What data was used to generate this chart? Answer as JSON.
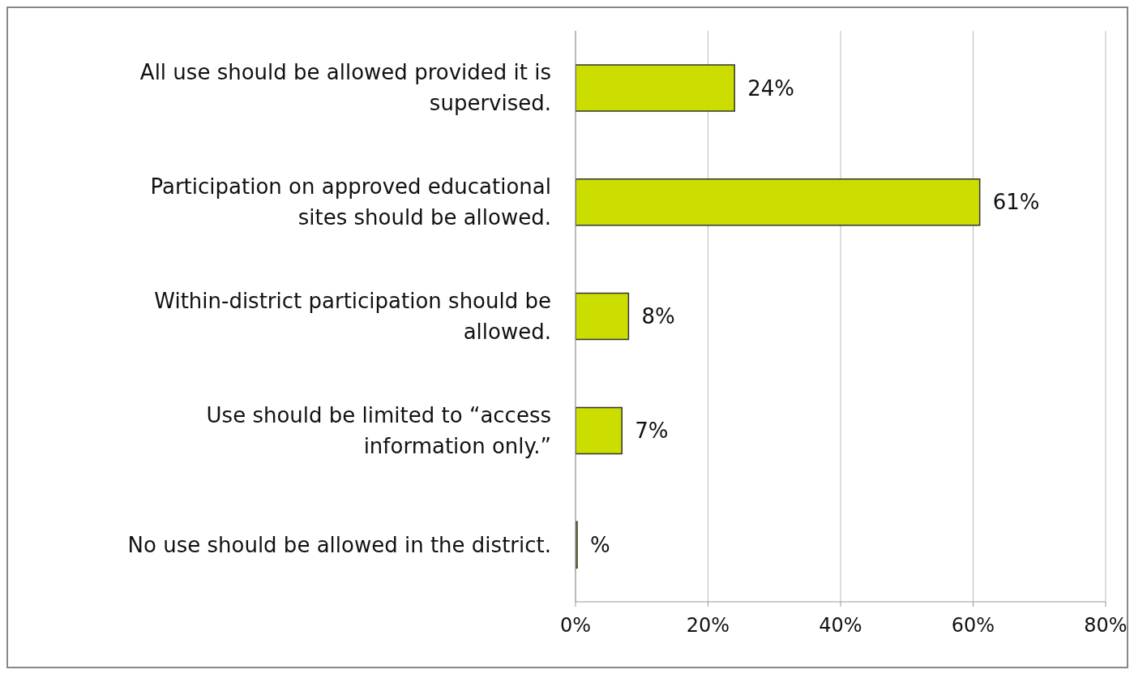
{
  "chart_data": {
    "type": "bar",
    "orientation": "horizontal",
    "categories": [
      "All use should be allowed provided it is supervised.",
      "Participation on approved educational sites should be allowed.",
      "Within-district participation should be allowed.",
      "Use should be limited to “access information only.”",
      "No use should be allowed in the district."
    ],
    "values": [
      24,
      61,
      8,
      7,
      0
    ],
    "value_labels": [
      "24%",
      "61%",
      "8%",
      "7%",
      "%"
    ],
    "color": "#ccdd00",
    "xlim": [
      0,
      80
    ],
    "xticks": [
      {
        "value": 0,
        "label": "0%"
      },
      {
        "value": 20,
        "label": "20%"
      },
      {
        "value": 40,
        "label": "40%"
      },
      {
        "value": 60,
        "label": "60%"
      },
      {
        "value": 80,
        "label": "80%"
      }
    ],
    "grid": "x",
    "legend": false
  }
}
